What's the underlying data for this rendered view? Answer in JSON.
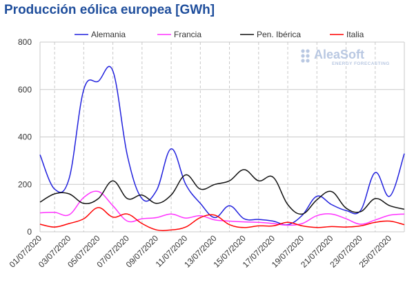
{
  "title": "Producción eólica europea [GWh]",
  "logo": {
    "name": "AleaSoft",
    "tagline": "ENERGY FORECASTING",
    "color": "#b9c8e2"
  },
  "chart_data": {
    "type": "line",
    "title": "Producción eólica europea [GWh]",
    "xlabel": "",
    "ylabel": "",
    "ylim": [
      0,
      800
    ],
    "yticks": [
      0,
      200,
      400,
      600,
      800
    ],
    "grid": {
      "x": true,
      "y": true,
      "x_style": "dashed"
    },
    "legend_position": "top",
    "x": [
      "01/07/2020",
      "02/07/2020",
      "03/07/2020",
      "04/07/2020",
      "05/07/2020",
      "06/07/2020",
      "07/07/2020",
      "08/07/2020",
      "09/07/2020",
      "10/07/2020",
      "11/07/2020",
      "12/07/2020",
      "13/07/2020",
      "14/07/2020",
      "15/07/2020",
      "16/07/2020",
      "17/07/2020",
      "18/07/2020",
      "19/07/2020",
      "20/07/2020",
      "21/07/2020",
      "22/07/2020",
      "23/07/2020",
      "24/07/2020",
      "25/07/2020",
      "26/07/2020"
    ],
    "x_tick_labels": [
      "01/07/2020",
      "03/07/2020",
      "05/07/2020",
      "07/07/2020",
      "09/07/2020",
      "11/07/2020",
      "13/07/2020",
      "15/07/2020",
      "17/07/2020",
      "19/07/2020",
      "21/07/2020",
      "23/07/2020",
      "25/07/2020"
    ],
    "series": [
      {
        "name": "Alemania",
        "color": "#2020dd",
        "values": [
          325,
          180,
          225,
          600,
          635,
          678,
          320,
          140,
          175,
          350,
          200,
          120,
          60,
          110,
          55,
          52,
          45,
          30,
          70,
          150,
          115,
          90,
          90,
          250,
          150,
          330
        ]
      },
      {
        "name": "Francia",
        "color": "#ff33ff",
        "values": [
          80,
          82,
          72,
          145,
          170,
          110,
          45,
          55,
          60,
          75,
          58,
          68,
          50,
          45,
          42,
          40,
          35,
          28,
          35,
          68,
          75,
          55,
          32,
          50,
          70,
          75
        ]
      },
      {
        "name": "Pen. Ibérica",
        "color": "#111111",
        "values": [
          125,
          160,
          160,
          120,
          140,
          215,
          140,
          155,
          120,
          155,
          240,
          180,
          200,
          215,
          262,
          215,
          230,
          115,
          75,
          135,
          170,
          100,
          85,
          140,
          110,
          95
        ]
      },
      {
        "name": "Italia",
        "color": "#ff0000",
        "values": [
          32,
          20,
          35,
          55,
          102,
          62,
          75,
          35,
          8,
          8,
          20,
          60,
          70,
          30,
          18,
          25,
          25,
          40,
          25,
          18,
          22,
          20,
          25,
          40,
          45,
          30
        ]
      }
    ]
  }
}
